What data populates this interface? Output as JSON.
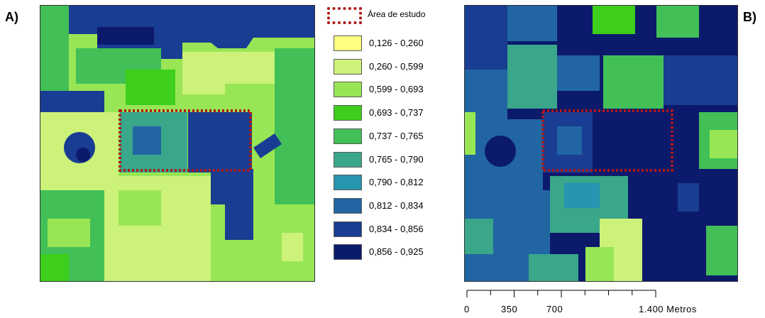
{
  "panels": [
    {
      "label": "A)"
    },
    {
      "label": "B)"
    }
  ],
  "legend": {
    "study_area_label": "Área de estudo",
    "study_area_color": "#b01818",
    "classes": [
      {
        "label": "0,126 - 0,260",
        "color": "#ffff80"
      },
      {
        "label": "0,260 - 0,599",
        "color": "#ccf27a"
      },
      {
        "label": "0,599 - 0,693",
        "color": "#98e655"
      },
      {
        "label": "0,693 - 0,737",
        "color": "#3dcf1c"
      },
      {
        "label": "0,737 - 0,765",
        "color": "#42c057"
      },
      {
        "label": "0,765 - 0,790",
        "color": "#3aa68a"
      },
      {
        "label": "0,790 - 0,812",
        "color": "#2595b0"
      },
      {
        "label": "0,812 - 0,834",
        "color": "#2166a3"
      },
      {
        "label": "0,834 - 0,856",
        "color": "#193d92"
      },
      {
        "label": "0,856 - 0,925",
        "color": "#0c1a6b"
      }
    ]
  },
  "scale_bar": {
    "labels": [
      "0",
      "350",
      "700",
      "1.400 Metros"
    ]
  }
}
